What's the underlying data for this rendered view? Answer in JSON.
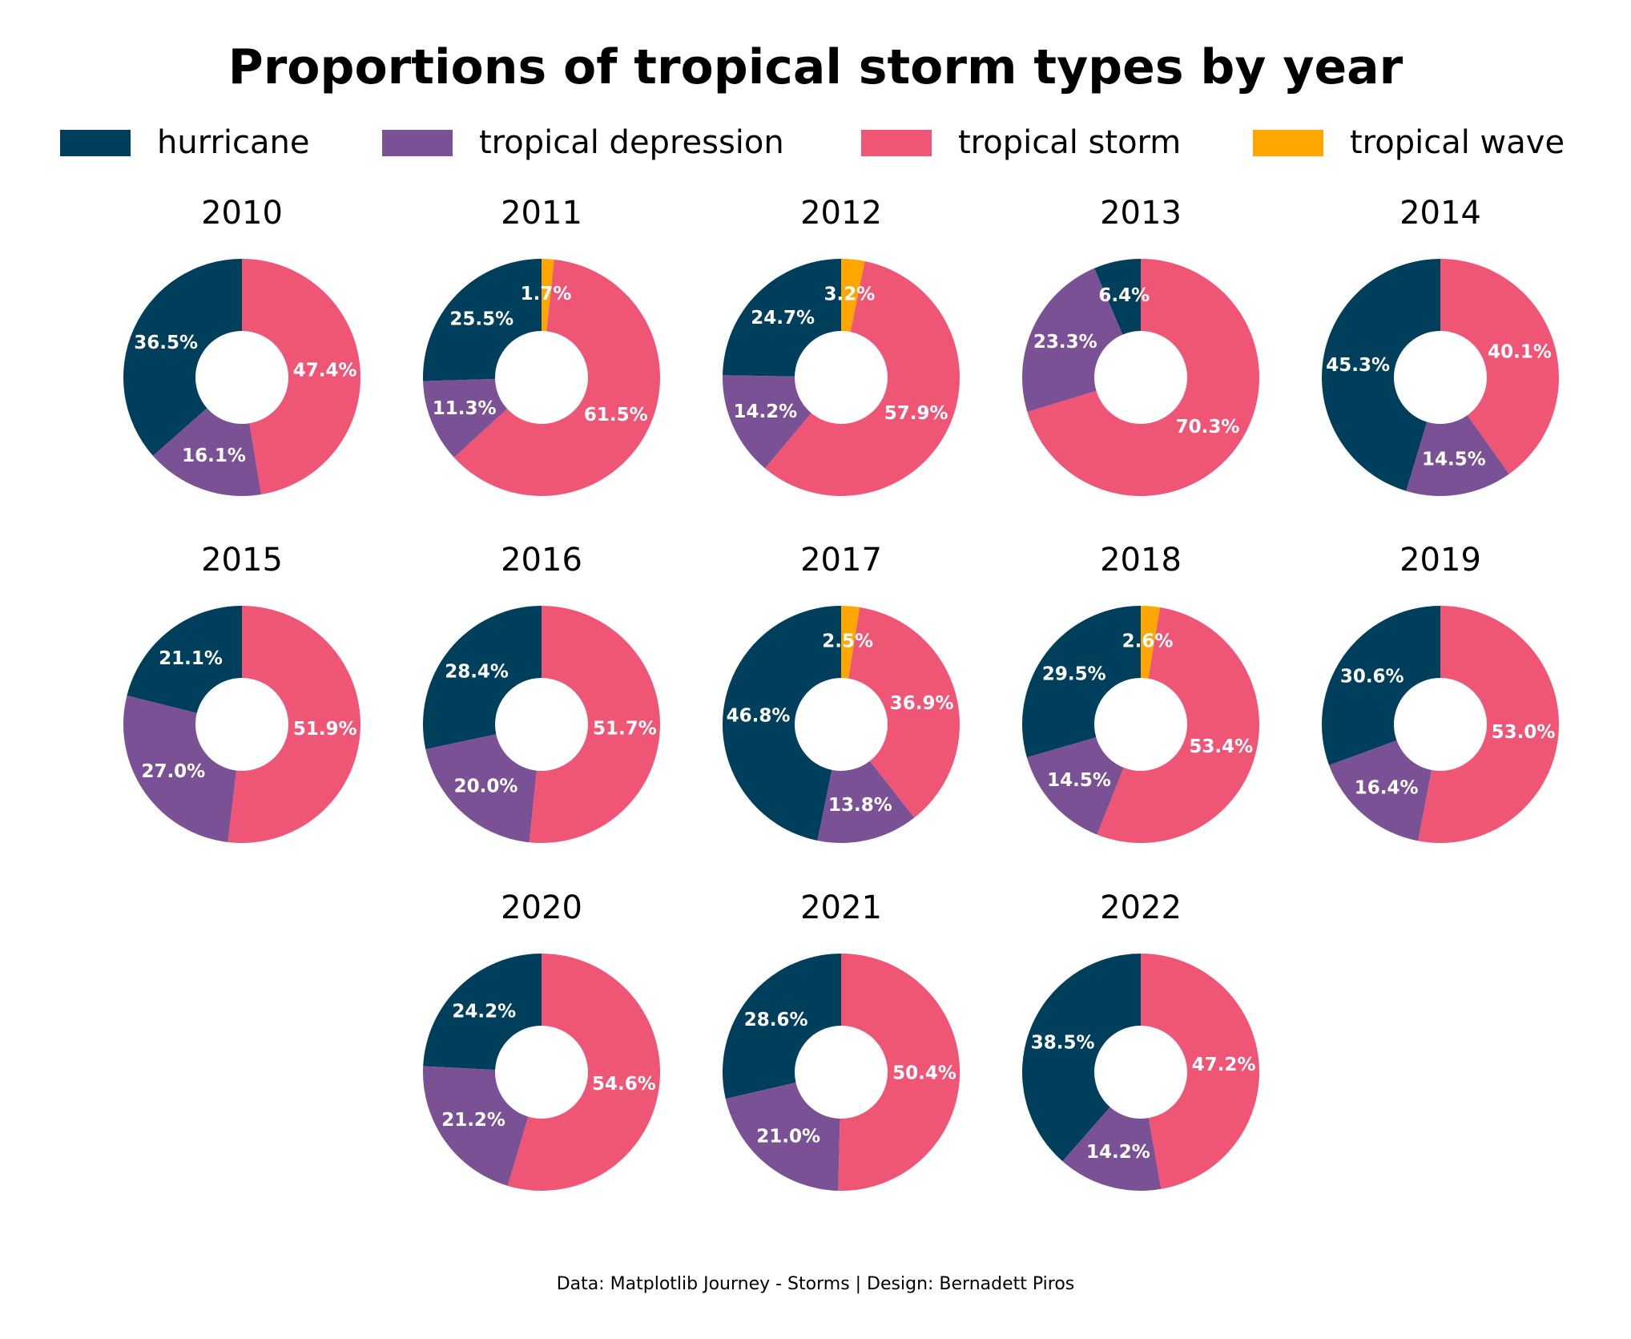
{
  "page": {
    "title": "Proportions of tropical storm types by year",
    "footnote": "Data: Matplotlib Journey - Storms | Design: Bernadett Piros"
  },
  "legend": {
    "placement": "top-center",
    "items": [
      {
        "label": "hurricane",
        "color": "#003f5c"
      },
      {
        "label": "tropical depression",
        "color": "#7a5195"
      },
      {
        "label": "tropical storm",
        "color": "#ef5675"
      },
      {
        "label": "tropical wave",
        "color": "#ffa600"
      }
    ]
  },
  "chart_data": {
    "type": "pie",
    "variant": "donut",
    "title": "Proportions of tropical storm types by year",
    "slice_order": "counterclockwise from 12 o'clock",
    "categories": [
      "hurricane",
      "tropical depression",
      "tropical storm",
      "tropical wave"
    ],
    "colors": {
      "hurricane": "#003f5c",
      "tropical depression": "#7a5195",
      "tropical storm": "#ef5675",
      "tropical wave": "#ffa600"
    },
    "panels": [
      {
        "year": "2010",
        "values": {
          "hurricane": 36.5,
          "tropical depression": 16.1,
          "tropical storm": 47.4
        }
      },
      {
        "year": "2011",
        "values": {
          "hurricane": 25.5,
          "tropical depression": 11.3,
          "tropical storm": 61.5,
          "tropical wave": 1.7
        }
      },
      {
        "year": "2012",
        "values": {
          "hurricane": 24.7,
          "tropical depression": 14.2,
          "tropical storm": 57.9,
          "tropical wave": 3.2
        }
      },
      {
        "year": "2013",
        "values": {
          "hurricane": 6.4,
          "tropical depression": 23.3,
          "tropical storm": 70.3
        }
      },
      {
        "year": "2014",
        "values": {
          "hurricane": 45.3,
          "tropical depression": 14.5,
          "tropical storm": 40.1
        }
      },
      {
        "year": "2015",
        "values": {
          "hurricane": 21.1,
          "tropical depression": 27.0,
          "tropical storm": 51.9
        }
      },
      {
        "year": "2016",
        "values": {
          "hurricane": 28.4,
          "tropical depression": 20.0,
          "tropical storm": 51.7
        }
      },
      {
        "year": "2017",
        "values": {
          "hurricane": 46.8,
          "tropical depression": 13.8,
          "tropical storm": 36.9,
          "tropical wave": 2.5
        }
      },
      {
        "year": "2018",
        "values": {
          "hurricane": 29.5,
          "tropical depression": 14.5,
          "tropical storm": 53.4,
          "tropical wave": 2.6
        }
      },
      {
        "year": "2019",
        "values": {
          "hurricane": 30.6,
          "tropical depression": 16.4,
          "tropical storm": 53.0
        }
      },
      {
        "year": "2020",
        "values": {
          "hurricane": 24.2,
          "tropical depression": 21.2,
          "tropical storm": 54.6
        }
      },
      {
        "year": "2021",
        "values": {
          "hurricane": 28.6,
          "tropical depression": 21.0,
          "tropical storm": 50.4
        }
      },
      {
        "year": "2022",
        "values": {
          "hurricane": 38.5,
          "tropical depression": 14.2,
          "tropical storm": 47.2
        }
      }
    ]
  }
}
